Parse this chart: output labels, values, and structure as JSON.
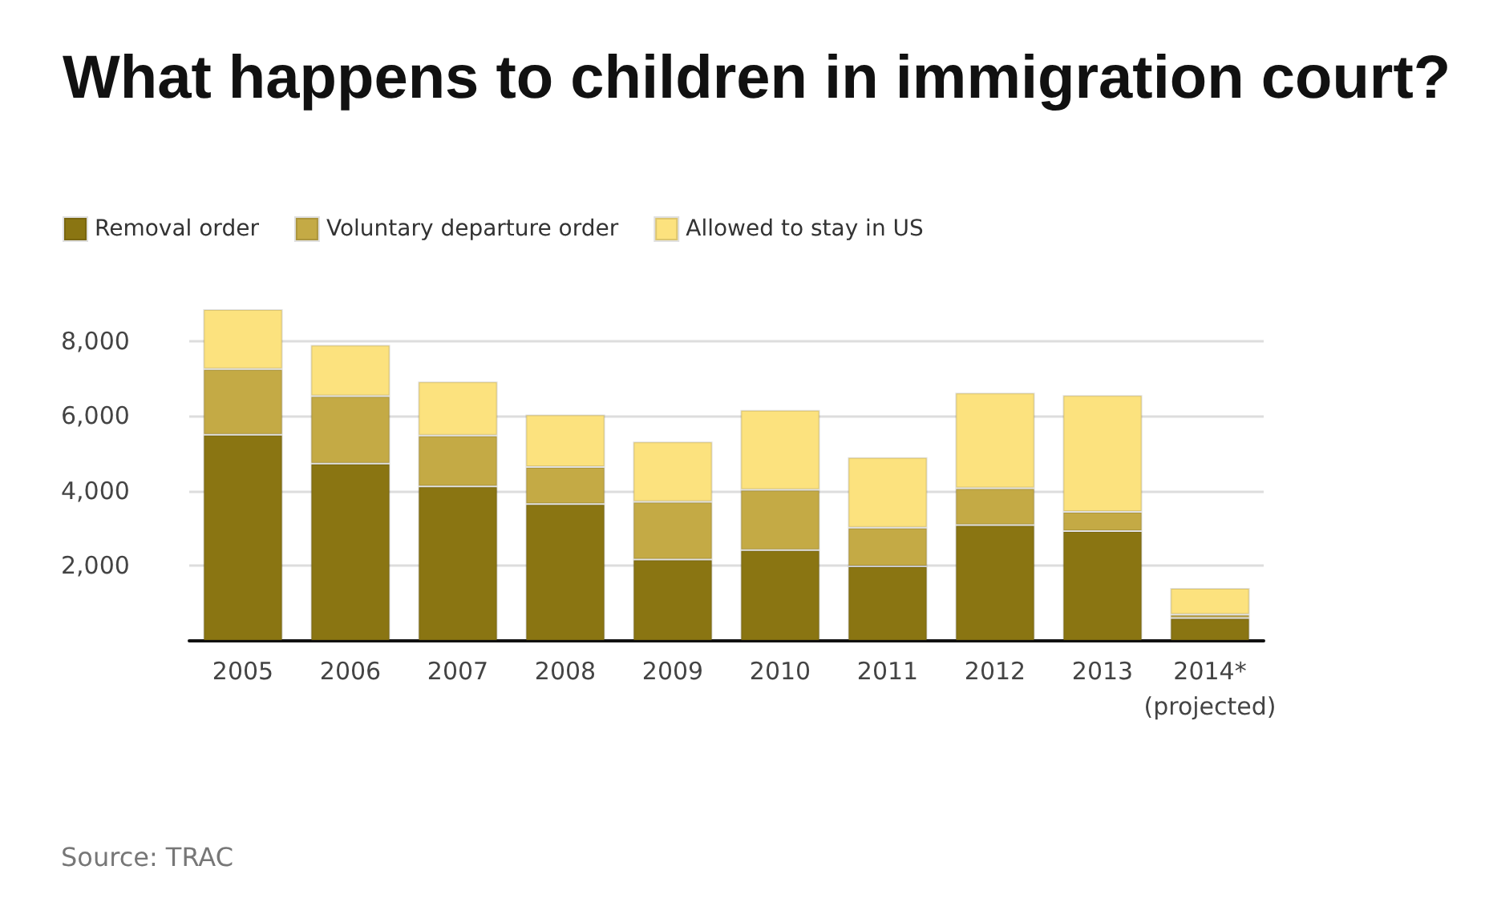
{
  "chart_data": {
    "type": "bar",
    "title": "What happens to children in immigration court?",
    "categories": [
      "2005",
      "2006",
      "2007",
      "2008",
      "2009",
      "2010",
      "2011",
      "2012",
      "2013",
      "2014*\n(projected)"
    ],
    "series": [
      {
        "name": "Removal order",
        "color": "#8a7512",
        "values": [
          5500,
          4730,
          4120,
          3650,
          2170,
          2420,
          1990,
          3090,
          2930,
          610
        ]
      },
      {
        "name": "Voluntary departure order",
        "color": "#c4aa45",
        "values": [
          1750,
          1800,
          1360,
          990,
          1540,
          1610,
          1030,
          980,
          510,
          90
        ]
      },
      {
        "name": "Allowed to stay in US",
        "color": "#fce27e",
        "values": [
          1600,
          1370,
          1440,
          1400,
          1610,
          2130,
          1880,
          2550,
          3120,
          710
        ]
      }
    ],
    "stacked": true,
    "ylim": [
      0,
      8850
    ],
    "yticks": [
      {
        "value": 0,
        "label": null
      },
      {
        "value": 2000,
        "label": "2,000"
      },
      {
        "value": 4000,
        "label": "4,000"
      },
      {
        "value": 6000,
        "label": "6,000"
      },
      {
        "value": 8000,
        "label": "8,000"
      }
    ],
    "grid": "y",
    "legend": "top left",
    "annotations": [
      "Source: TRAC"
    ]
  }
}
